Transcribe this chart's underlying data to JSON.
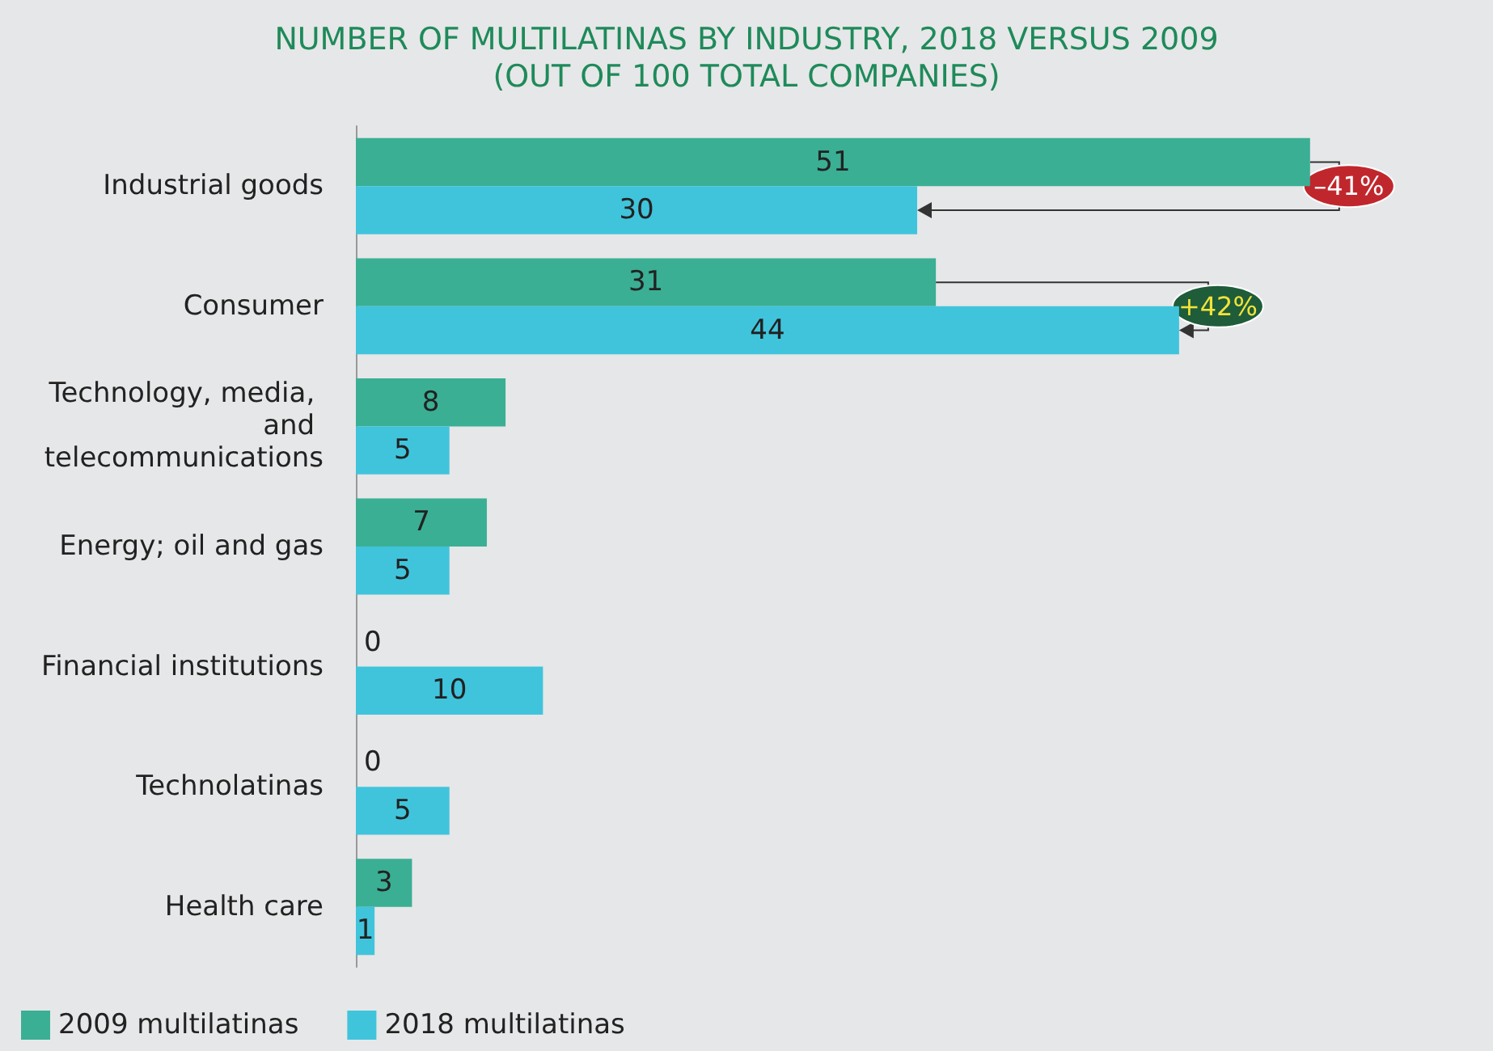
{
  "chart_data": {
    "type": "bar",
    "orientation": "horizontal",
    "title": "NUMBER OF MULTILATINAS BY INDUSTRY, 2018 VERSUS 2009\n(OUT OF 100 TOTAL COMPANIES)",
    "categories": [
      "Industrial goods",
      "Consumer",
      "Technology, media, and telecommunications",
      "Energy; oil and gas",
      "Financial institutions",
      "Technolatinas",
      "Health care"
    ],
    "series": [
      {
        "name": "2009 multilatinas",
        "color": "#3aaf94",
        "values": [
          51,
          31,
          8,
          7,
          0,
          0,
          3
        ]
      },
      {
        "name": "2018 multilatinas",
        "color": "#40c4dc",
        "values": [
          30,
          44,
          5,
          5,
          10,
          5,
          1
        ]
      }
    ],
    "data_labels": true,
    "legend": "bottom left",
    "annotations": [
      {
        "text": "–41%",
        "x": 51,
        "y": "Industrial goods"
      },
      {
        "text": "+42%",
        "x": 44,
        "y": "Consumer"
      }
    ]
  }
}
